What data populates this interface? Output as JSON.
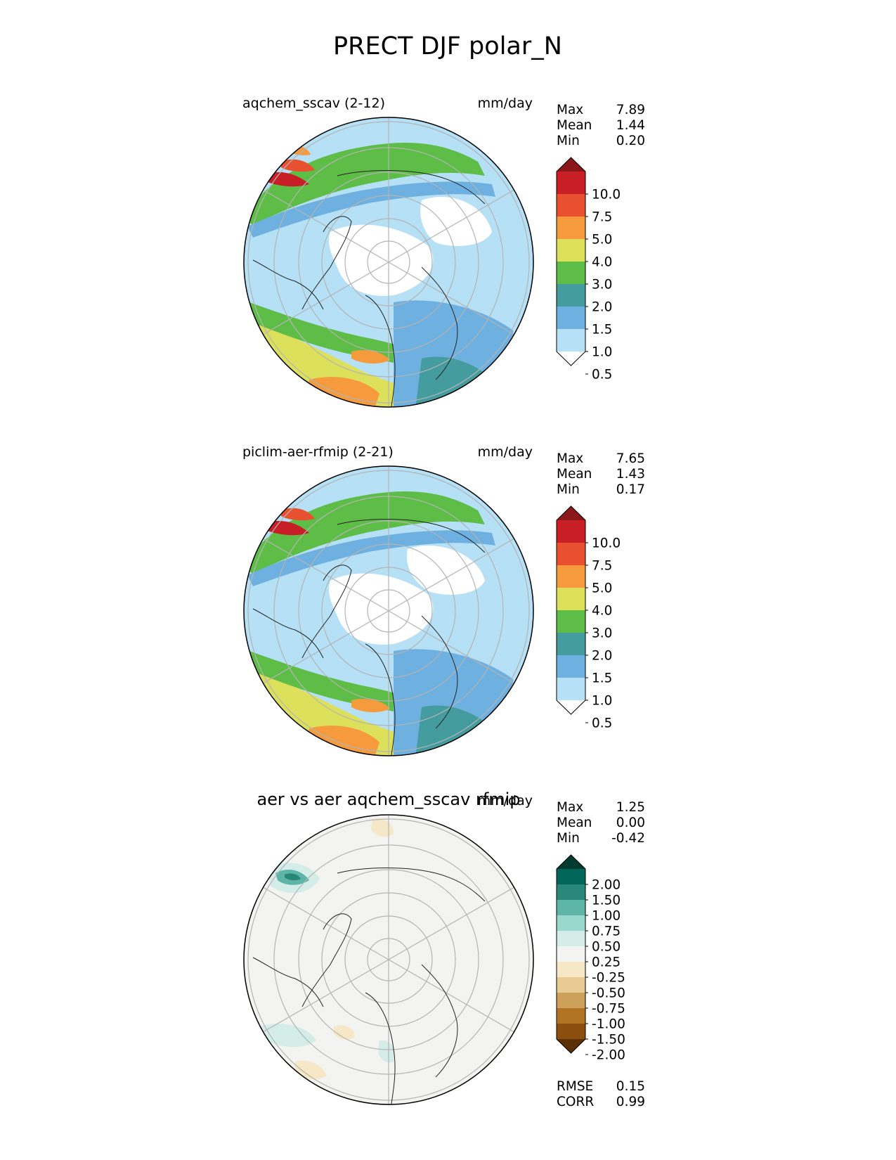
{
  "figure_title": "PRECT DJF polar_N",
  "chart_data": [
    {
      "type": "contour-map",
      "projection": "north-polar-stereographic",
      "title": "aqchem_sscav (2-12)",
      "units": "mm/day",
      "stats": [
        {
          "label": "Max",
          "value": "7.89"
        },
        {
          "label": "Mean",
          "value": "1.44"
        },
        {
          "label": "Min",
          "value": "0.20"
        }
      ],
      "colorbar": {
        "levels": [
          "10.0",
          "7.5",
          "5.0",
          "4.0",
          "3.0",
          "2.0",
          "1.5",
          "1.0",
          "0.5"
        ],
        "colors": [
          "#ffffff",
          "#b5e0f5",
          "#6eb0df",
          "#459c9f",
          "#5ebd47",
          "#dde05a",
          "#f59a3d",
          "#e9502f",
          "#c81f27",
          "#8c171b"
        ],
        "extend": "both"
      },
      "features": [
        "coastlines",
        "lat-lon-gridlines"
      ]
    },
    {
      "type": "contour-map",
      "projection": "north-polar-stereographic",
      "title": "piclim-aer-rfmip (2-21)",
      "units": "mm/day",
      "stats": [
        {
          "label": "Max",
          "value": "7.65"
        },
        {
          "label": "Mean",
          "value": "1.43"
        },
        {
          "label": "Min",
          "value": "0.17"
        }
      ],
      "colorbar": {
        "levels": [
          "10.0",
          "7.5",
          "5.0",
          "4.0",
          "3.0",
          "2.0",
          "1.5",
          "1.0",
          "0.5"
        ],
        "colors": [
          "#ffffff",
          "#b5e0f5",
          "#6eb0df",
          "#459c9f",
          "#5ebd47",
          "#dde05a",
          "#f59a3d",
          "#e9502f",
          "#c81f27",
          "#8c171b"
        ],
        "extend": "both"
      },
      "features": [
        "coastlines",
        "lat-lon-gridlines"
      ]
    },
    {
      "type": "contour-map",
      "projection": "north-polar-stereographic",
      "title": "aer vs aer aqchem_sscav rfmip",
      "units": "mm/day",
      "stats": [
        {
          "label": "Max",
          "value": "1.25"
        },
        {
          "label": "Mean",
          "value": "0.00"
        },
        {
          "label": "Min",
          "value": "-0.42"
        }
      ],
      "colorbar": {
        "levels": [
          "2.00",
          "1.50",
          "1.00",
          "0.75",
          "0.50",
          "0.25",
          "-0.25",
          "-0.50",
          "-0.75",
          "-1.00",
          "-1.50",
          "-2.00"
        ],
        "colors": [
          "#5a3006",
          "#8b4e0e",
          "#b27323",
          "#cda159",
          "#e8ca93",
          "#f6e8c6",
          "#f3f3f1",
          "#d4ede9",
          "#9ad7cd",
          "#5cb5a7",
          "#288779",
          "#02665a",
          "#003b30"
        ],
        "extend": "both"
      },
      "extra_stats": [
        {
          "label": "RMSE",
          "value": "0.15"
        },
        {
          "label": "CORR",
          "value": "0.99"
        }
      ],
      "features": [
        "coastlines",
        "lat-lon-gridlines"
      ]
    }
  ]
}
